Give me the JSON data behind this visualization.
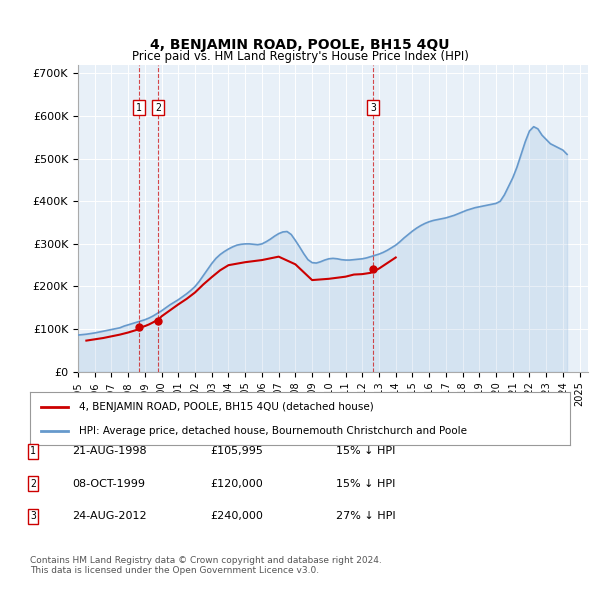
{
  "title": "4, BENJAMIN ROAD, POOLE, BH15 4QU",
  "subtitle": "Price paid vs. HM Land Registry's House Price Index (HPI)",
  "ylabel_ticks": [
    "£0",
    "£100K",
    "£200K",
    "£300K",
    "£400K",
    "£500K",
    "£600K",
    "£700K"
  ],
  "ytick_values": [
    0,
    100000,
    200000,
    300000,
    400000,
    500000,
    600000,
    700000
  ],
  "ylim": [
    0,
    720000
  ],
  "xlim_start": 1995.0,
  "xlim_end": 2025.5,
  "background_color": "#e8f0f8",
  "plot_bg_color": "#e8f0f8",
  "red_line_color": "#cc0000",
  "blue_line_color": "#6699cc",
  "sale_dates_num": [
    1998.64,
    1999.77,
    2012.65
  ],
  "sale_prices": [
    105995,
    120000,
    240000
  ],
  "sale_labels": [
    "1",
    "2",
    "3"
  ],
  "legend_label_red": "4, BENJAMIN ROAD, POOLE, BH15 4QU (detached house)",
  "legend_label_blue": "HPI: Average price, detached house, Bournemouth Christchurch and Poole",
  "table_data": [
    [
      "1",
      "21-AUG-1998",
      "£105,995",
      "15% ↓ HPI"
    ],
    [
      "2",
      "08-OCT-1999",
      "£120,000",
      "15% ↓ HPI"
    ],
    [
      "3",
      "24-AUG-2012",
      "£240,000",
      "27% ↓ HPI"
    ]
  ],
  "footnote": "Contains HM Land Registry data © Crown copyright and database right 2024.\nThis data is licensed under the Open Government Licence v3.0.",
  "hpi_years": [
    1995.0,
    1995.25,
    1995.5,
    1995.75,
    1996.0,
    1996.25,
    1996.5,
    1996.75,
    1997.0,
    1997.25,
    1997.5,
    1997.75,
    1998.0,
    1998.25,
    1998.5,
    1998.75,
    1999.0,
    1999.25,
    1999.5,
    1999.75,
    2000.0,
    2000.25,
    2000.5,
    2000.75,
    2001.0,
    2001.25,
    2001.5,
    2001.75,
    2002.0,
    2002.25,
    2002.5,
    2002.75,
    2003.0,
    2003.25,
    2003.5,
    2003.75,
    2004.0,
    2004.25,
    2004.5,
    2004.75,
    2005.0,
    2005.25,
    2005.5,
    2005.75,
    2006.0,
    2006.25,
    2006.5,
    2006.75,
    2007.0,
    2007.25,
    2007.5,
    2007.75,
    2008.0,
    2008.25,
    2008.5,
    2008.75,
    2009.0,
    2009.25,
    2009.5,
    2009.75,
    2010.0,
    2010.25,
    2010.5,
    2010.75,
    2011.0,
    2011.25,
    2011.5,
    2011.75,
    2012.0,
    2012.25,
    2012.5,
    2012.75,
    2013.0,
    2013.25,
    2013.5,
    2013.75,
    2014.0,
    2014.25,
    2014.5,
    2014.75,
    2015.0,
    2015.25,
    2015.5,
    2015.75,
    2016.0,
    2016.25,
    2016.5,
    2016.75,
    2017.0,
    2017.25,
    2017.5,
    2017.75,
    2018.0,
    2018.25,
    2018.5,
    2018.75,
    2019.0,
    2019.25,
    2019.5,
    2019.75,
    2020.0,
    2020.25,
    2020.5,
    2020.75,
    2021.0,
    2021.25,
    2021.5,
    2021.75,
    2022.0,
    2022.25,
    2022.5,
    2022.75,
    2023.0,
    2023.25,
    2023.5,
    2023.75,
    2024.0,
    2024.25
  ],
  "hpi_values": [
    86000,
    87000,
    88000,
    89500,
    91000,
    93000,
    95000,
    97000,
    99000,
    101000,
    103000,
    107000,
    110000,
    113000,
    116000,
    119000,
    122000,
    126000,
    131000,
    137000,
    143000,
    150000,
    157000,
    163000,
    169000,
    176000,
    183000,
    191000,
    200000,
    212000,
    226000,
    240000,
    254000,
    266000,
    275000,
    282000,
    288000,
    293000,
    297000,
    299000,
    300000,
    300000,
    299000,
    298000,
    300000,
    305000,
    311000,
    318000,
    324000,
    328000,
    329000,
    322000,
    308000,
    293000,
    277000,
    263000,
    256000,
    255000,
    258000,
    262000,
    265000,
    266000,
    265000,
    263000,
    262000,
    262000,
    263000,
    264000,
    265000,
    267000,
    270000,
    273000,
    276000,
    280000,
    285000,
    291000,
    297000,
    305000,
    314000,
    322000,
    330000,
    337000,
    343000,
    348000,
    352000,
    355000,
    357000,
    359000,
    361000,
    364000,
    367000,
    371000,
    375000,
    379000,
    382000,
    385000,
    387000,
    389000,
    391000,
    393000,
    395000,
    400000,
    415000,
    435000,
    455000,
    480000,
    510000,
    540000,
    565000,
    575000,
    570000,
    555000,
    545000,
    535000,
    530000,
    525000,
    520000,
    510000
  ],
  "red_hpi_years": [
    1995.5,
    1996.0,
    1996.5,
    1997.0,
    1997.5,
    1998.0,
    1998.25,
    1998.5,
    1998.64,
    1998.75,
    1999.0,
    1999.25,
    1999.5,
    1999.64,
    1999.77,
    1999.9,
    2000.0,
    2000.25,
    2000.5,
    2000.75,
    2001.0,
    2001.5,
    2002.0,
    2002.5,
    2003.0,
    2003.5,
    2004.0,
    2005.0,
    2006.0,
    2007.0,
    2008.0,
    2009.0,
    2010.0,
    2011.0,
    2011.5,
    2012.0,
    2012.5,
    2012.65,
    2012.75,
    2013.0,
    2013.5,
    2014.0
  ],
  "red_hpi_values": [
    73000,
    76000,
    79000,
    83000,
    87000,
    92000,
    95000,
    98000,
    102000,
    104000,
    107000,
    111000,
    116000,
    119000,
    122000,
    126000,
    130000,
    137000,
    144000,
    151000,
    158000,
    171000,
    186000,
    205000,
    222000,
    238000,
    250000,
    257000,
    262000,
    270000,
    252000,
    215000,
    218000,
    223000,
    228000,
    229000,
    232000,
    235000,
    237000,
    242000,
    255000,
    268000
  ]
}
